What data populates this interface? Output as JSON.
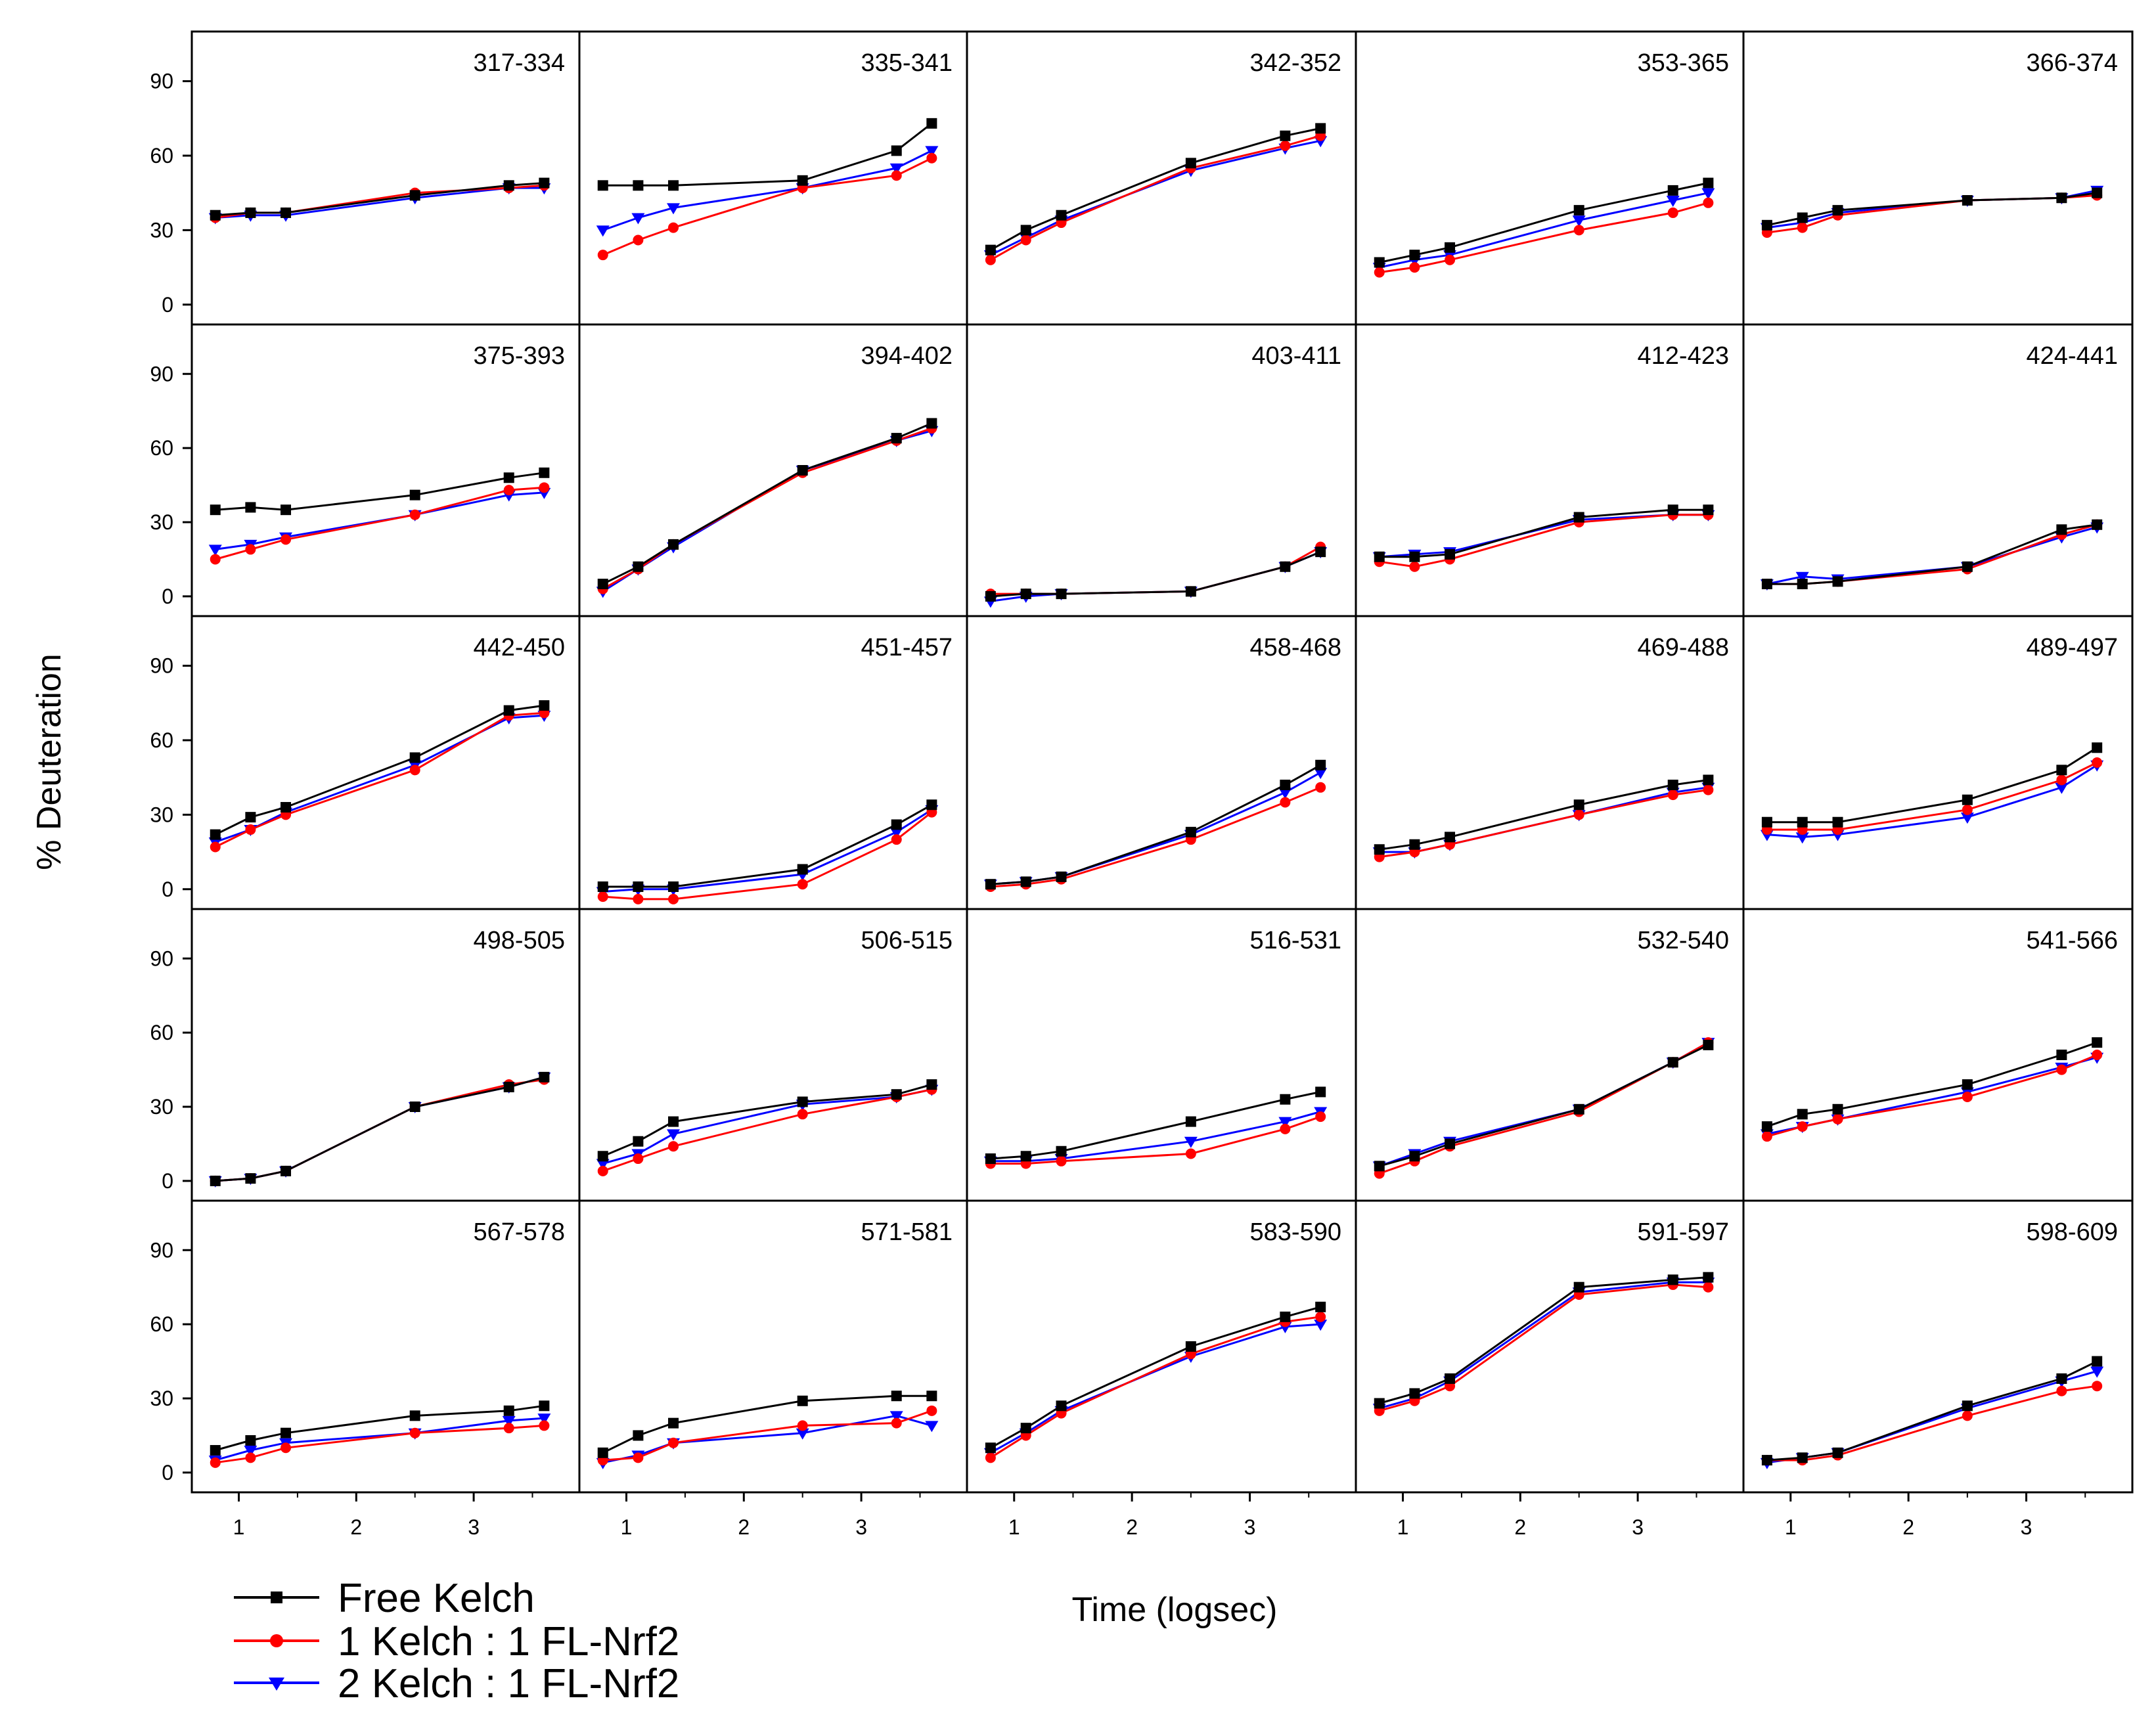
{
  "chart_data": {
    "type": "line",
    "title": "",
    "xlabel": "Time (logsec)",
    "ylabel": "% Deuteration",
    "xlim": [
      0.6,
      3.9
    ],
    "ylim": [
      -8,
      110
    ],
    "xticks": [
      "1",
      "2",
      "3"
    ],
    "yticks": [
      "0",
      "30",
      "60",
      "90"
    ],
    "x": [
      0.8,
      1.1,
      1.4,
      2.5,
      3.3,
      3.6
    ],
    "legend": [
      {
        "name": "Free Kelch",
        "color": "#000000",
        "marker": "square"
      },
      {
        "name": "1 Kelch : 1 FL-Nrf2",
        "color": "#ff0000",
        "marker": "circle"
      },
      {
        "name": "2 Kelch : 1 FL-Nrf2",
        "color": "#0000ff",
        "marker": "triangle-down"
      }
    ],
    "panels": [
      {
        "label": "317-334",
        "series": [
          [
            36,
            37,
            37,
            44,
            48,
            49
          ],
          [
            35,
            37,
            37,
            45,
            47,
            48
          ],
          [
            35,
            36,
            36,
            43,
            47,
            47
          ]
        ]
      },
      {
        "label": "335-341",
        "series": [
          [
            48,
            48,
            48,
            50,
            62,
            73
          ],
          [
            20,
            26,
            31,
            47,
            52,
            59
          ],
          [
            30,
            35,
            39,
            47,
            55,
            62
          ]
        ]
      },
      {
        "label": "342-352",
        "series": [
          [
            22,
            30,
            36,
            57,
            68,
            71
          ],
          [
            18,
            26,
            33,
            55,
            64,
            68
          ],
          [
            20,
            27,
            34,
            54,
            63,
            66
          ]
        ]
      },
      {
        "label": "353-365",
        "series": [
          [
            17,
            20,
            23,
            38,
            46,
            49
          ],
          [
            13,
            15,
            18,
            30,
            37,
            41
          ],
          [
            15,
            18,
            20,
            34,
            42,
            45
          ]
        ]
      },
      {
        "label": "366-374",
        "series": [
          [
            32,
            35,
            38,
            42,
            43,
            45
          ],
          [
            29,
            31,
            36,
            42,
            43,
            44
          ],
          [
            31,
            33,
            37,
            42,
            43,
            46
          ]
        ]
      },
      {
        "label": "375-393",
        "series": [
          [
            35,
            36,
            35,
            41,
            48,
            50
          ],
          [
            15,
            19,
            23,
            33,
            43,
            44
          ],
          [
            19,
            21,
            24,
            33,
            41,
            42
          ]
        ]
      },
      {
        "label": "394-402",
        "series": [
          [
            5,
            12,
            21,
            51,
            64,
            70
          ],
          [
            3,
            11,
            21,
            50,
            63,
            68
          ],
          [
            2,
            11,
            20,
            51,
            63,
            67
          ]
        ]
      },
      {
        "label": "403-411",
        "series": [
          [
            0,
            1,
            1,
            2,
            12,
            18
          ],
          [
            1,
            1,
            1,
            2,
            12,
            20
          ],
          [
            -2,
            0,
            1,
            2,
            12,
            18
          ]
        ]
      },
      {
        "label": "412-423",
        "series": [
          [
            16,
            16,
            17,
            32,
            35,
            35
          ],
          [
            14,
            12,
            15,
            30,
            33,
            33
          ],
          [
            16,
            17,
            18,
            31,
            33,
            33
          ]
        ]
      },
      {
        "label": "424-441",
        "series": [
          [
            5,
            5,
            6,
            12,
            27,
            29
          ],
          [
            5,
            5,
            6,
            11,
            25,
            29
          ],
          [
            5,
            8,
            7,
            12,
            24,
            28
          ]
        ]
      },
      {
        "label": "442-450",
        "series": [
          [
            22,
            29,
            33,
            53,
            72,
            74
          ],
          [
            17,
            24,
            30,
            48,
            70,
            71
          ],
          [
            19,
            24,
            31,
            50,
            69,
            70
          ]
        ]
      },
      {
        "label": "451-457",
        "series": [
          [
            1,
            1,
            1,
            8,
            26,
            34
          ],
          [
            -3,
            -4,
            -4,
            2,
            20,
            31
          ],
          [
            -1,
            0,
            0,
            6,
            23,
            32
          ]
        ]
      },
      {
        "label": "458-468",
        "series": [
          [
            2,
            3,
            5,
            23,
            42,
            50
          ],
          [
            1,
            2,
            4,
            20,
            35,
            41
          ],
          [
            2,
            3,
            5,
            22,
            39,
            47
          ]
        ]
      },
      {
        "label": "469-488",
        "series": [
          [
            16,
            18,
            21,
            34,
            42,
            44
          ],
          [
            13,
            15,
            18,
            30,
            38,
            40
          ],
          [
            15,
            15,
            18,
            30,
            39,
            41
          ]
        ]
      },
      {
        "label": "489-497",
        "series": [
          [
            27,
            27,
            27,
            36,
            48,
            57
          ],
          [
            24,
            24,
            24,
            32,
            44,
            51
          ],
          [
            22,
            21,
            22,
            29,
            41,
            50
          ]
        ]
      },
      {
        "label": "498-505",
        "series": [
          [
            0,
            1,
            4,
            30,
            38,
            42
          ],
          [
            0,
            1,
            4,
            30,
            39,
            41
          ],
          [
            0,
            1,
            4,
            30,
            38,
            42
          ]
        ]
      },
      {
        "label": "506-515",
        "series": [
          [
            10,
            16,
            24,
            32,
            35,
            39
          ],
          [
            4,
            9,
            14,
            27,
            34,
            37
          ],
          [
            7,
            11,
            19,
            31,
            34,
            37
          ]
        ]
      },
      {
        "label": "516-531",
        "series": [
          [
            9,
            10,
            12,
            24,
            33,
            36
          ],
          [
            7,
            7,
            8,
            11,
            21,
            26
          ],
          [
            8,
            8,
            9,
            16,
            24,
            28
          ]
        ]
      },
      {
        "label": "532-540",
        "series": [
          [
            6,
            10,
            15,
            29,
            48,
            55
          ],
          [
            3,
            8,
            14,
            28,
            48,
            56
          ],
          [
            6,
            11,
            16,
            29,
            48,
            56
          ]
        ]
      },
      {
        "label": "541-566",
        "series": [
          [
            22,
            27,
            29,
            39,
            51,
            56
          ],
          [
            18,
            22,
            25,
            34,
            45,
            51
          ],
          [
            19,
            22,
            25,
            36,
            46,
            50
          ]
        ]
      },
      {
        "label": "567-578",
        "series": [
          [
            9,
            13,
            16,
            23,
            25,
            27
          ],
          [
            4,
            6,
            10,
            16,
            18,
            19
          ],
          [
            5,
            9,
            12,
            16,
            21,
            22
          ]
        ]
      },
      {
        "label": "571-581",
        "series": [
          [
            8,
            15,
            20,
            29,
            31,
            31
          ],
          [
            5,
            6,
            12,
            19,
            20,
            25
          ],
          [
            4,
            7,
            12,
            16,
            23,
            19
          ]
        ]
      },
      {
        "label": "583-590",
        "series": [
          [
            10,
            18,
            27,
            51,
            63,
            67
          ],
          [
            6,
            15,
            24,
            48,
            61,
            63
          ],
          [
            8,
            16,
            25,
            47,
            59,
            60
          ]
        ]
      },
      {
        "label": "591-597",
        "series": [
          [
            28,
            32,
            38,
            75,
            78,
            79
          ],
          [
            25,
            29,
            35,
            72,
            76,
            75
          ],
          [
            26,
            30,
            37,
            73,
            77,
            77
          ]
        ]
      },
      {
        "label": "598-609",
        "series": [
          [
            5,
            6,
            8,
            27,
            38,
            45
          ],
          [
            5,
            5,
            7,
            23,
            33,
            35
          ],
          [
            4,
            6,
            8,
            26,
            37,
            41
          ]
        ]
      }
    ]
  }
}
